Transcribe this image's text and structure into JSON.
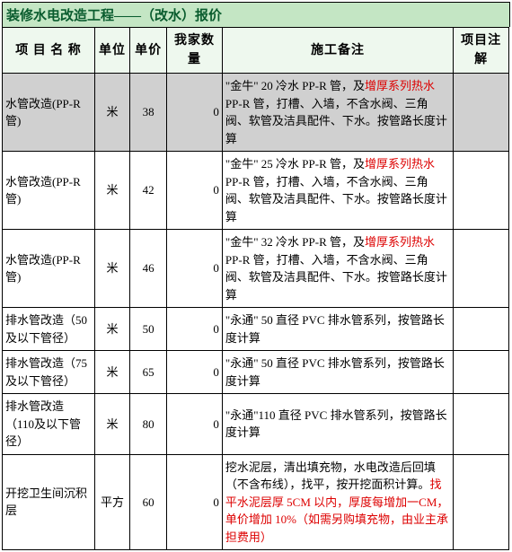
{
  "title": "装修水电改造工程——（改水）报价",
  "headers": {
    "name": "项 目 名 称",
    "unit": "单位",
    "price": "单价",
    "qty": "我家数量",
    "remark": "施工备注",
    "note": "项目注解"
  },
  "rows": [
    {
      "shaded": true,
      "name": "水管改造(PP-R管)",
      "unit": "米",
      "price": "38",
      "qty": "0",
      "remark_pre": "\"金牛\" 20 冷水 PP-R 管，及",
      "remark_red": "增厚系列热水",
      "remark_post": " PP-R 管，打槽、入墙，不含水阀、三角阀、软管及洁具配件、下水。按管路长度计算",
      "note": ""
    },
    {
      "shaded": false,
      "name": "水管改造(PP-R管)",
      "unit": "米",
      "price": "42",
      "qty": "0",
      "remark_pre": "\"金牛\" 25 冷水 PP-R 管，及",
      "remark_red": "增厚系列热水",
      "remark_post": " PP-R 管，打槽、入墙，不含水阀、三角阀、软管及洁具配件、下水。按管路长度计算",
      "note": ""
    },
    {
      "shaded": false,
      "name": "水管改造(PP-R管)",
      "unit": "米",
      "price": "46",
      "qty": "0",
      "remark_pre": "\"金牛\" 32 冷水 PP-R 管，及",
      "remark_red": "增厚系列热水",
      "remark_post": " PP-R 管，打槽、入墙，不含水阀、三角阀、软管及洁具配件、下水。按管路长度计算",
      "note": ""
    },
    {
      "shaded": false,
      "name": "排水管改造（50及以下管径）",
      "unit": "米",
      "price": "50",
      "qty": "0",
      "remark_pre": "\"永通\" 50 直径 PVC 排水管系列，按管路长度计算",
      "remark_red": "",
      "remark_post": "",
      "note": ""
    },
    {
      "shaded": false,
      "name": "排水管改造（75及以下管径）",
      "unit": "米",
      "price": "65",
      "qty": "0",
      "remark_pre": "\"永通\" 50 直径 PVC 排水管系列，按管路长度计算",
      "remark_red": "",
      "remark_post": "",
      "note": ""
    },
    {
      "shaded": false,
      "name": "排水管改造（110及以下管径）",
      "unit": "米",
      "price": "80",
      "qty": "0",
      "remark_pre": "\"永通\"110 直径 PVC 排水管系列，按管路长度计算",
      "remark_red": "",
      "remark_post": "",
      "note": ""
    },
    {
      "shaded": false,
      "name": "开挖卫生间沉积层",
      "unit": "平方",
      "price": "60",
      "qty": "0",
      "remark_pre": "挖水泥层，清出填充物，水电改造后回填（不含布线），找平，按开挖面积计算。",
      "remark_red": "找平水泥层厚 5CM 以内，厚度每增加一CM，单价增加 10%（如需另购填充物，由业主承担费用）",
      "remark_post": "",
      "note": ""
    }
  ]
}
